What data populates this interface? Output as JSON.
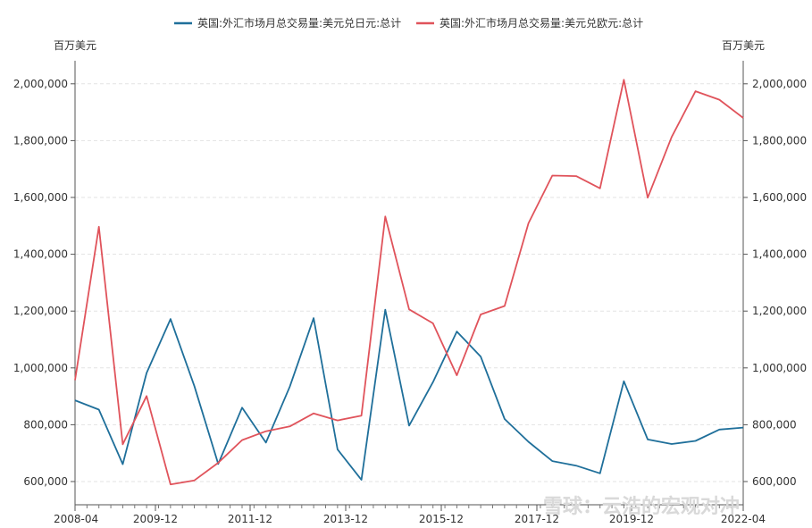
{
  "chart_data": {
    "type": "line",
    "left_unit": "百万美元",
    "right_unit": "百万美元",
    "x_tick_labels": [
      "2008-04",
      "2009-12",
      "2011-12",
      "2013-12",
      "2015-12",
      "2017-12",
      "2019-12",
      "2022-04"
    ],
    "y_tick_labels": [
      "600,000",
      "800,000",
      "1,000,000",
      "1,200,000",
      "1,400,000",
      "1,600,000",
      "1,800,000",
      "2,000,000"
    ],
    "y_ticks": [
      600000,
      800000,
      1000000,
      1200000,
      1400000,
      1600000,
      1800000,
      2000000
    ],
    "ylim": [
      520000,
      2090000
    ],
    "grid": true,
    "legend_position": "top",
    "series": [
      {
        "name": "英国:外汇市场月总交易量:美元兑日元:总计",
        "color": "#1f6f9a",
        "values": [
          886000,
          853000,
          661000,
          982000,
          1172000,
          936000,
          662000,
          860000,
          737000,
          934000,
          1175000,
          713000,
          606000,
          1205000,
          797000,
          950000,
          1128000,
          1040000,
          820000,
          740000,
          672000,
          656000,
          629000,
          953000,
          748000,
          732000,
          743000,
          783000,
          790000
        ]
      },
      {
        "name": "英国:外汇市场月总交易量:美元兑欧元:总计",
        "color": "#e0535b",
        "values": [
          957000,
          1497000,
          731000,
          901000,
          590000,
          604000,
          666000,
          746000,
          777000,
          794000,
          840000,
          815000,
          832000,
          1533000,
          1206000,
          1157000,
          974000,
          1188000,
          1218000,
          1509000,
          1677000,
          1675000,
          1632000,
          2014000,
          1599000,
          1813000,
          1974000,
          1944000,
          1880000
        ]
      }
    ]
  },
  "watermark_text": "雪球：云浩的宏观对冲"
}
